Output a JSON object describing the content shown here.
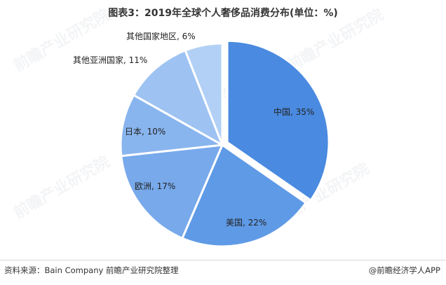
{
  "title": "图表3：2019年全球个人奢侈品消费分布(单位：%)",
  "chart_data": {
    "type": "pie",
    "unit": "%",
    "slices": [
      {
        "label": "中国",
        "value": 35,
        "color": "#4A8AE0"
      },
      {
        "label": "美国",
        "value": 22,
        "color": "#5F9AE6"
      },
      {
        "label": "欧洲",
        "value": 17,
        "color": "#77A9EB"
      },
      {
        "label": "日本",
        "value": 10,
        "color": "#89B5EE"
      },
      {
        "label": "其他亚洲国家",
        "value": 11,
        "color": "#9EC3F2"
      },
      {
        "label": "其他国家地区",
        "value": 6,
        "color": "#B2D0F5"
      }
    ],
    "label_format": "{label}, {value}%"
  },
  "footer": {
    "source": "资料来源：Bain Company 前瞻产业研究院整理",
    "brand": "@前瞻经济学人APP"
  },
  "watermark_text": "前瞻产业研究院"
}
